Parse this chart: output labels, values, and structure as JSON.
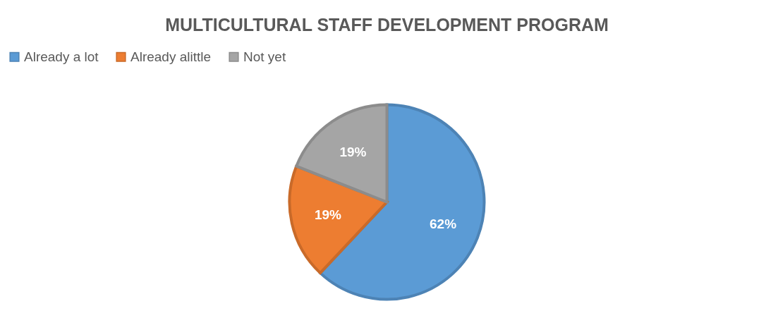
{
  "chart_data": {
    "type": "pie",
    "title": "MULTICULTURAL STAFF DEVELOPMENT PROGRAM",
    "categories": [
      "Already a lot",
      "Already alittle",
      "Not yet"
    ],
    "values": [
      62,
      19,
      19
    ],
    "colors": [
      "#5b9bd5",
      "#ed7d31",
      "#a5a5a5"
    ],
    "value_labels": [
      "62%",
      "19%",
      "19%"
    ],
    "legend": "top"
  }
}
